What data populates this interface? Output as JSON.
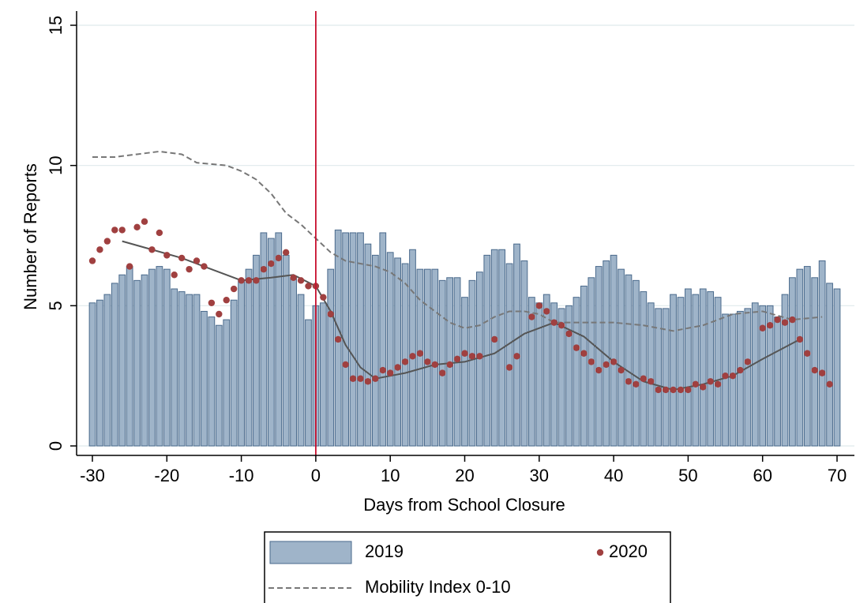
{
  "chart_data": {
    "type": "combo",
    "x_label": "Days from School Closure",
    "y_label": "Number of Reports",
    "xlim": [
      -30,
      70
    ],
    "xticks": [
      -30,
      -20,
      -10,
      0,
      10,
      20,
      30,
      40,
      50,
      60,
      70
    ],
    "ylim": [
      0,
      15
    ],
    "yticks": [
      0,
      5,
      10,
      15
    ],
    "grid": true,
    "vline": 0,
    "vline_color": "#c8102e",
    "legend": "bottom",
    "series": [
      {
        "name": "2019",
        "type": "bar",
        "color": "#9fb4c9",
        "x": [
          -30,
          -29,
          -28,
          -27,
          -26,
          -25,
          -24,
          -23,
          -22,
          -21,
          -20,
          -19,
          -18,
          -17,
          -16,
          -15,
          -14,
          -13,
          -12,
          -11,
          -10,
          -9,
          -8,
          -7,
          -6,
          -5,
          -4,
          -3,
          -2,
          -1,
          0,
          1,
          2,
          3,
          4,
          5,
          6,
          7,
          8,
          9,
          10,
          11,
          12,
          13,
          14,
          15,
          16,
          17,
          18,
          19,
          20,
          21,
          22,
          23,
          24,
          25,
          26,
          27,
          28,
          29,
          30,
          31,
          32,
          33,
          34,
          35,
          36,
          37,
          38,
          39,
          40,
          41,
          42,
          43,
          44,
          45,
          46,
          47,
          48,
          49,
          50,
          51,
          52,
          53,
          54,
          55,
          56,
          57,
          58,
          59,
          60,
          61,
          62,
          63,
          64,
          65,
          66,
          67,
          68,
          69,
          70
        ],
        "values": [
          5.1,
          5.2,
          5.4,
          5.8,
          6.1,
          6.4,
          5.9,
          6.1,
          6.3,
          6.4,
          6.3,
          5.6,
          5.5,
          5.4,
          5.4,
          4.8,
          4.6,
          4.3,
          4.5,
          5.2,
          5.9,
          6.3,
          6.8,
          7.6,
          7.4,
          7.6,
          6.8,
          6.0,
          5.4,
          4.5,
          5.0,
          5.1,
          6.3,
          7.7,
          7.6,
          7.6,
          7.6,
          7.2,
          6.8,
          7.6,
          6.9,
          6.7,
          6.5,
          7.0,
          6.3,
          6.3,
          6.3,
          5.9,
          6.0,
          6.0,
          5.3,
          5.9,
          6.2,
          6.8,
          7.0,
          7.0,
          6.5,
          7.2,
          6.6,
          5.3,
          5.1,
          5.4,
          5.1,
          4.9,
          5.0,
          5.3,
          5.7,
          6.0,
          6.4,
          6.6,
          6.8,
          6.3,
          6.1,
          5.9,
          5.5,
          5.1,
          4.9,
          4.9,
          5.4,
          5.3,
          5.6,
          5.4,
          5.6,
          5.5,
          5.3,
          4.7,
          4.7,
          4.8,
          4.9,
          5.1,
          5.0,
          5.0,
          4.6,
          5.4,
          6.0,
          6.3,
          6.4,
          6.0,
          6.6,
          5.8,
          5.6
        ]
      },
      {
        "name": "2020",
        "type": "scatter",
        "color": "#a04040",
        "x": [
          -30,
          -29,
          -28,
          -27,
          -26,
          -25,
          -24,
          -23,
          -22,
          -21,
          -20,
          -19,
          -18,
          -17,
          -16,
          -15,
          -14,
          -13,
          -12,
          -11,
          -10,
          -9,
          -8,
          -7,
          -6,
          -5,
          -4,
          -3,
          -2,
          -1,
          0,
          1,
          2,
          3,
          4,
          5,
          6,
          7,
          8,
          9,
          10,
          11,
          12,
          13,
          14,
          15,
          16,
          17,
          18,
          19,
          20,
          21,
          22,
          24,
          26,
          27,
          29,
          30,
          31,
          32,
          33,
          34,
          35,
          36,
          37,
          38,
          39,
          40,
          41,
          42,
          43,
          44,
          45,
          46,
          47,
          48,
          49,
          50,
          51,
          52,
          53,
          54,
          55,
          56,
          57,
          58,
          60,
          61,
          62,
          63,
          64,
          65,
          66,
          67,
          68,
          69
        ],
        "values": [
          6.6,
          7.0,
          7.3,
          7.7,
          7.7,
          6.4,
          7.8,
          8.0,
          7.0,
          7.6,
          6.8,
          6.1,
          6.7,
          6.3,
          6.6,
          6.4,
          5.1,
          4.7,
          5.2,
          5.6,
          5.9,
          5.9,
          5.9,
          6.3,
          6.5,
          6.7,
          6.9,
          6.0,
          5.9,
          5.7,
          5.7,
          5.3,
          4.7,
          3.8,
          2.9,
          2.4,
          2.4,
          2.3,
          2.4,
          2.7,
          2.6,
          2.8,
          3.0,
          3.2,
          3.3,
          3.0,
          2.9,
          2.6,
          2.9,
          3.1,
          3.3,
          3.2,
          3.2,
          3.8,
          2.8,
          3.2,
          4.6,
          5.0,
          4.8,
          4.4,
          4.3,
          4.0,
          3.5,
          3.3,
          3.0,
          2.7,
          2.9,
          3.0,
          2.7,
          2.3,
          2.2,
          2.4,
          2.3,
          2.0,
          2.0,
          2.0,
          2.0,
          2.0,
          2.2,
          2.1,
          2.3,
          2.2,
          2.5,
          2.5,
          2.7,
          3.0,
          4.2,
          4.3,
          4.5,
          4.4,
          4.5,
          3.8,
          3.3,
          2.7,
          2.6,
          2.2
        ]
      },
      {
        "type": "line",
        "color": "#555555",
        "x": [
          -26,
          -22,
          -18,
          -14,
          -10,
          -6,
          -3,
          0,
          2,
          4,
          6,
          8,
          12,
          16,
          20,
          24,
          28,
          32,
          36,
          40,
          44,
          48,
          52,
          56,
          60,
          65
        ],
        "values": [
          7.3,
          7.0,
          6.7,
          6.3,
          5.9,
          6.0,
          6.1,
          5.7,
          4.8,
          3.6,
          2.8,
          2.4,
          2.6,
          2.9,
          3.0,
          3.3,
          4.0,
          4.4,
          3.9,
          3.0,
          2.3,
          2.0,
          2.2,
          2.5,
          3.1,
          3.8
        ]
      },
      {
        "name": "Mobility Index 0-10",
        "type": "line",
        "dash": true,
        "color": "#777777",
        "x": [
          -30,
          -27,
          -24,
          -21,
          -18,
          -16,
          -12,
          -10,
          -8,
          -6,
          -4,
          -2,
          0,
          2,
          4,
          8,
          10,
          12,
          14,
          16,
          18,
          20,
          22,
          24,
          26,
          28,
          30,
          32,
          36,
          40,
          44,
          48,
          52,
          56,
          60,
          64,
          68
        ],
        "values": [
          10.3,
          10.3,
          10.4,
          10.5,
          10.4,
          10.1,
          10.0,
          9.8,
          9.5,
          9.0,
          8.3,
          7.9,
          7.4,
          6.9,
          6.6,
          6.4,
          6.2,
          5.8,
          5.2,
          4.8,
          4.4,
          4.2,
          4.3,
          4.6,
          4.8,
          4.8,
          4.7,
          4.4,
          4.4,
          4.4,
          4.3,
          4.1,
          4.3,
          4.7,
          4.8,
          4.5,
          4.6
        ]
      }
    ]
  }
}
